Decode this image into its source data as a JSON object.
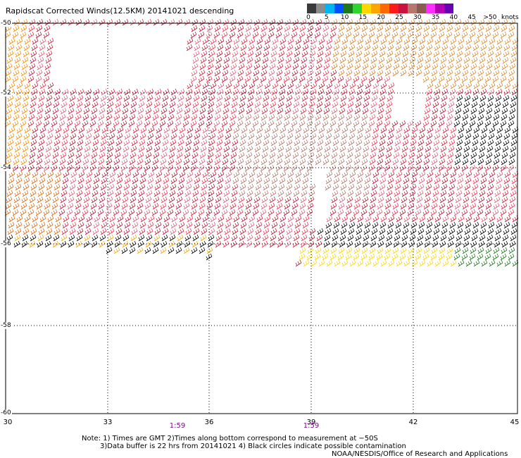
{
  "title": "Rapidscat Corrected Winds(12.5KM) 20141021 descending",
  "legend": {
    "labels": [
      "0",
      "5",
      "10",
      "15",
      "20",
      "25",
      "30",
      "35",
      "40",
      "45",
      ">50"
    ],
    "units": "knots",
    "colors": [
      "#3a3a3a",
      "#8c8c8c",
      "#00b4f0",
      "#0050ff",
      "#1a7a1a",
      "#2ed52e",
      "#ffd700",
      "#ffa500",
      "#ff6a00",
      "#ff1a1a",
      "#c8143c",
      "#b4786e",
      "#8b5a50",
      "#ff2dff",
      "#b400b4",
      "#6a00b4"
    ]
  },
  "map": {
    "lat_labels": [
      "-50",
      "-52",
      "-54",
      "-56",
      "-58",
      "-60"
    ],
    "lon_labels": [
      "30",
      "33",
      "36",
      "39",
      "42",
      "45"
    ],
    "time_labels": [
      "1:59",
      "1:59"
    ]
  },
  "notes": {
    "line1": "Note: 1) Times are GMT 2)Times along bottom correspond to measurement at −50S",
    "line2": "3)Data buffer is 22 hrs from 20141021 4) Black circles indicate possible contamination",
    "credit": "NOAA/NESDIS/Office of Research and Applications"
  }
}
